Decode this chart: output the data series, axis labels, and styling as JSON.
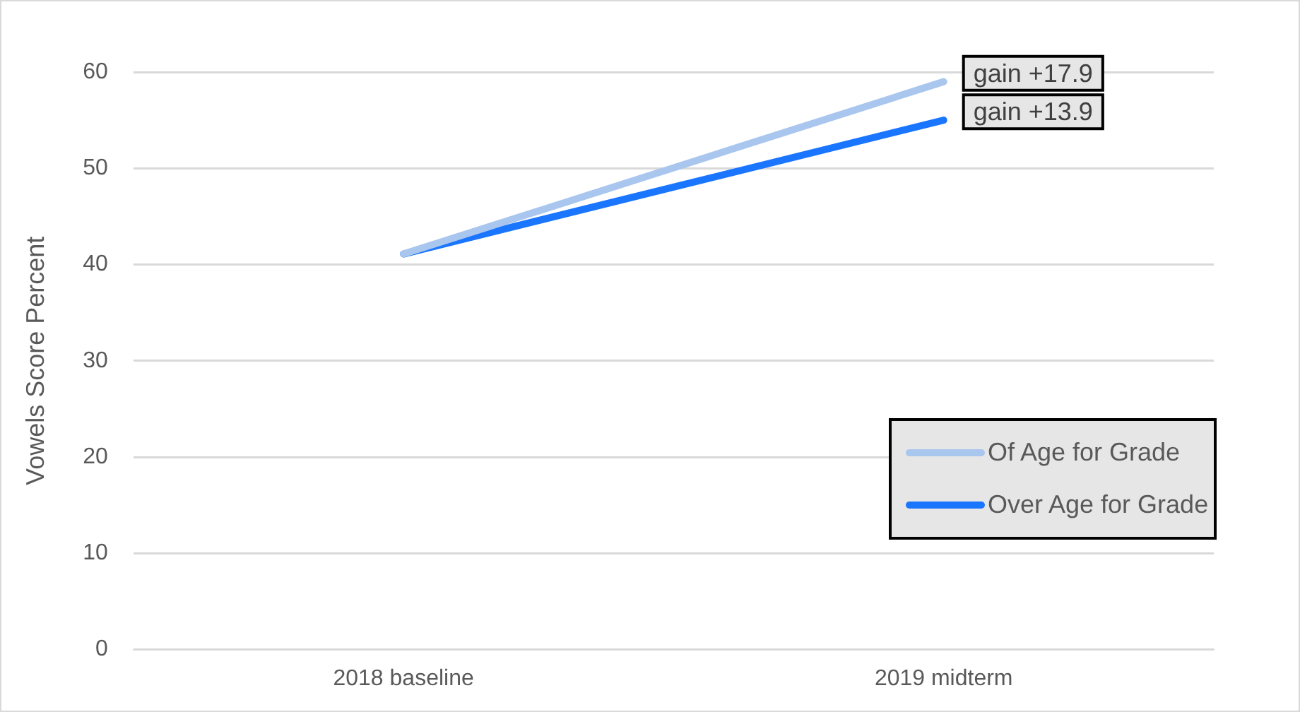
{
  "chart_data": {
    "type": "line",
    "ylabel": "Vowels Score Percent",
    "categories": [
      "2018 baseline",
      "2019 midterm"
    ],
    "series": [
      {
        "name": "Of Age for Grade",
        "color": "#a9c6ee",
        "values": [
          41.1,
          59
        ]
      },
      {
        "name": "Over Age for Grade",
        "color": "#1a75ff",
        "values": [
          41.1,
          55
        ]
      }
    ],
    "ylim": [
      0,
      60
    ],
    "yticks": [
      0,
      10,
      20,
      30,
      40,
      50,
      60
    ],
    "grid": "y",
    "legend": "bottom right",
    "marker": "none",
    "line_style": "solid",
    "annotations": [
      {
        "text": "gain +17.9",
        "x": "2019 midterm",
        "y": 59
      },
      {
        "text": "gain +13.9",
        "x": "2019 midterm",
        "y": 55
      }
    ]
  }
}
